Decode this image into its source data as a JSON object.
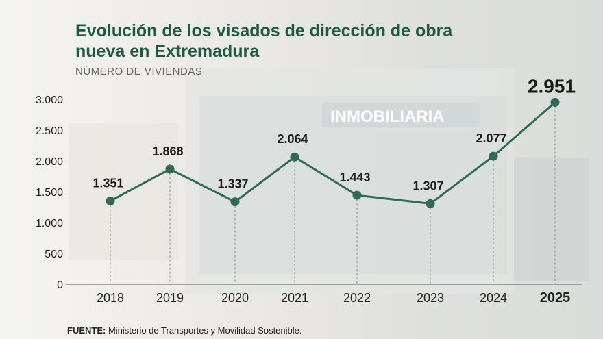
{
  "chart_data": {
    "type": "line",
    "title": "Evolución de los visados de dirección de obra nueva en Extremadura",
    "subtitle": "NÚMERO DE VIVIENDAS",
    "categories": [
      "2018",
      "2019",
      "2020",
      "2021",
      "2022",
      "2023",
      "2024",
      "2025"
    ],
    "values": [
      1351,
      1868,
      1337,
      2064,
      1443,
      1307,
      2077,
      2951
    ],
    "value_labels": [
      "1.351",
      "1.868",
      "1.337",
      "2.064",
      "1.443",
      "1.307",
      "2.077",
      "2.951"
    ],
    "ylim": [
      0,
      3000
    ],
    "yticks": [
      0,
      500,
      1000,
      1500,
      2000,
      2500,
      3000
    ],
    "ytick_labels": [
      "0",
      "500",
      "1.000",
      "1.500",
      "2.000",
      "2.500",
      "3.000"
    ],
    "grid": "vertical dashed",
    "highlight": "2025",
    "line_color": "#2f6a58",
    "title_color": "#1d5a45"
  },
  "source_label": "FUENTE:",
  "source_text": "Ministerio de Transportes y Movilidad Sostenible.",
  "background_sign": "INMOBILIARIA"
}
